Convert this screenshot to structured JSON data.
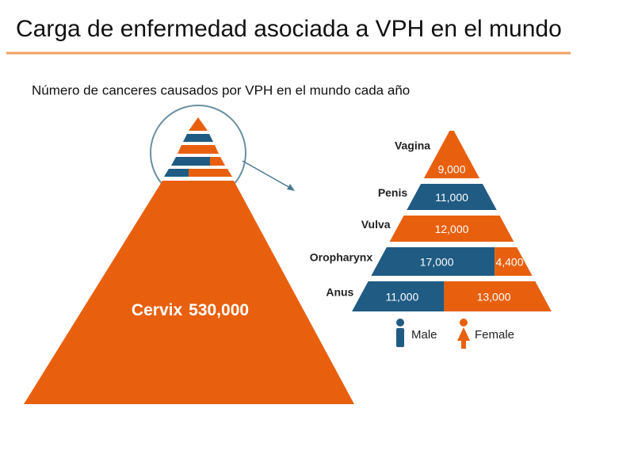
{
  "title": "Carga de enfermedad asociada a VPH en el mundo",
  "chart_data": {
    "type": "pyramid",
    "subtitle": "Número de canceres causados por VPH en el mundo cada año",
    "main": {
      "category": "Cervix",
      "value": 530000,
      "value_label": "530,000",
      "color": "#e8600e"
    },
    "categories": [
      "Vagina",
      "Penis",
      "Vulva",
      "Oropharynx",
      "Anus"
    ],
    "series": [
      {
        "name": "Male",
        "color": "#1f5b82",
        "values": [
          null,
          11000,
          null,
          17000,
          11000
        ],
        "value_labels": [
          null,
          "11,000",
          null,
          "17,000",
          "11,000"
        ]
      },
      {
        "name": "Female",
        "color": "#e8600e",
        "values": [
          9000,
          null,
          12000,
          4400,
          13000
        ],
        "value_labels": [
          "9,000",
          null,
          "12,000",
          "4,400",
          "13,000"
        ]
      }
    ]
  }
}
